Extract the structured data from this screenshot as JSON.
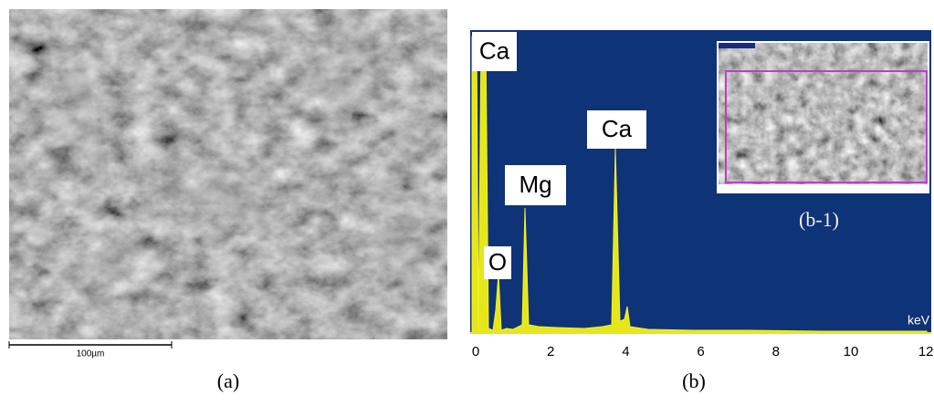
{
  "panel_a": {
    "scale_bar": "100µm",
    "caption": "(a)"
  },
  "panel_b": {
    "peak_labels": [
      "Ca",
      "Mg",
      "Ca",
      "O"
    ],
    "axis_unit": "keV",
    "x_ticks": [
      "0",
      "2",
      "4",
      "6",
      "8",
      "10",
      "12"
    ],
    "inset_label": "(b-1)",
    "caption": "(b)"
  }
}
